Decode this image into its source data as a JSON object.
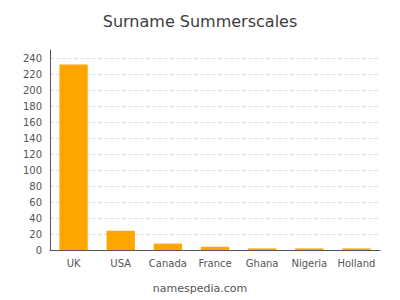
{
  "chart_data": {
    "type": "bar",
    "title": "Surname Summerscales",
    "categories": [
      "UK",
      "USA",
      "Canada",
      "France",
      "Ghana",
      "Nigeria",
      "Holland"
    ],
    "values": [
      232,
      24,
      8,
      4,
      2,
      2,
      2
    ],
    "color": "#FFA500",
    "ylim": [
      0,
      250
    ],
    "yticks": [
      0,
      20,
      40,
      60,
      80,
      100,
      120,
      140,
      160,
      180,
      200,
      220,
      240
    ],
    "grid": true,
    "annotations": [
      "namespedia.com"
    ]
  }
}
